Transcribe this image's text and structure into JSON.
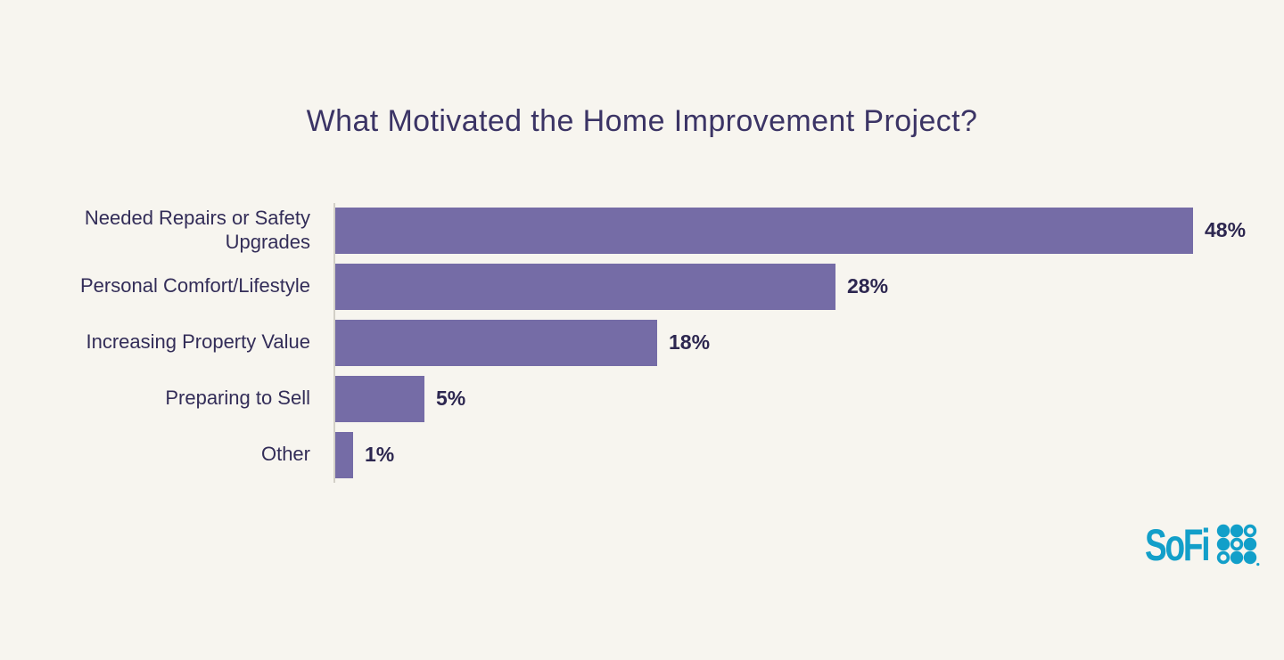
{
  "chart_data": {
    "type": "bar",
    "orientation": "horizontal",
    "title": "What Motivated the Home Improvement Project?",
    "categories": [
      "Needed Repairs or Safety Upgrades",
      "Personal Comfort/Lifestyle",
      "Increasing Property Value",
      "Preparing to Sell",
      "Other"
    ],
    "values": [
      48,
      28,
      18,
      5,
      1
    ],
    "value_labels": [
      "48%",
      "28%",
      "18%",
      "5%",
      "1%"
    ],
    "xlabel": "",
    "ylabel": "",
    "xlim": [
      0,
      50
    ],
    "grid": false,
    "legend": "none",
    "data_label_position": "end-of-bar",
    "bar_color": "#756ca6"
  },
  "footer": {
    "brand": "SoFi",
    "logo_mark": "sofi-dot-grid-icon"
  },
  "colors": {
    "background": "#f7f5ef",
    "bar": "#756ca6",
    "title_text": "#3b3465",
    "label_text": "#332d58",
    "value_text": "#2d2750",
    "axis_line": "#d2cfc7",
    "logo": "#129fc9"
  }
}
